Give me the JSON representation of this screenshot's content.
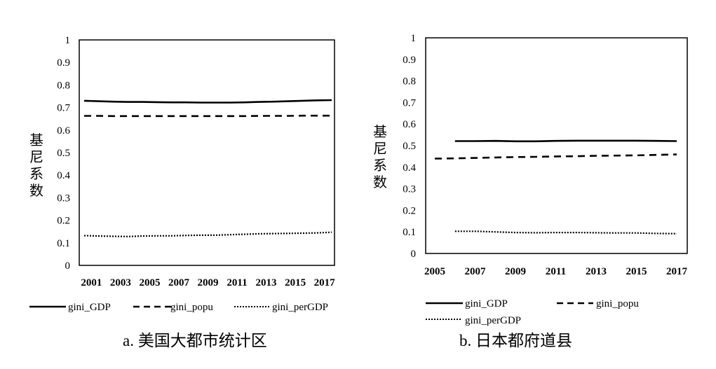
{
  "chart_data": [
    {
      "type": "line",
      "caption": "a. 美国大都市统计区",
      "ylabel": "基尼系数",
      "xlabel": "",
      "ylim": [
        0,
        1
      ],
      "yticks": [
        "0",
        "0.1",
        "0.2",
        "0.3",
        "0.4",
        "0.5",
        "0.6",
        "0.7",
        "0.8",
        "0.9",
        "1"
      ],
      "xtick_labels": [
        "2001",
        "2003",
        "2005",
        "2007",
        "2009",
        "2011",
        "2013",
        "2015",
        "2017"
      ],
      "x": [
        2001,
        2002,
        2003,
        2004,
        2005,
        2006,
        2007,
        2008,
        2009,
        2010,
        2011,
        2012,
        2013,
        2014,
        2015,
        2016,
        2017,
        2018
      ],
      "series": [
        {
          "name": "gini_GDP",
          "style": "solid",
          "values": [
            0.73,
            0.728,
            0.726,
            0.725,
            0.725,
            0.724,
            0.723,
            0.723,
            0.722,
            0.722,
            0.722,
            0.723,
            0.725,
            0.726,
            0.728,
            0.73,
            0.732,
            0.733
          ]
        },
        {
          "name": "gini_popu",
          "style": "dashed",
          "values": [
            0.663,
            0.663,
            0.662,
            0.662,
            0.662,
            0.662,
            0.662,
            0.662,
            0.662,
            0.662,
            0.662,
            0.662,
            0.663,
            0.663,
            0.663,
            0.664,
            0.664,
            0.664
          ]
        },
        {
          "name": "gini_perGDP",
          "style": "dotted",
          "values": [
            0.132,
            0.13,
            0.129,
            0.128,
            0.13,
            0.131,
            0.131,
            0.133,
            0.134,
            0.134,
            0.136,
            0.138,
            0.14,
            0.141,
            0.142,
            0.143,
            0.144,
            0.147
          ]
        }
      ],
      "legend": [
        "gini_GDP",
        "gini_popu",
        "gini_perGDP"
      ]
    },
    {
      "type": "line",
      "caption": "b. 日本都府道县",
      "ylabel": "基尼系数",
      "xlabel": "",
      "ylim": [
        0,
        1
      ],
      "yticks": [
        "0",
        "0.1",
        "0.2",
        "0.3",
        "0.4",
        "0.5",
        "0.6",
        "0.7",
        "0.8",
        "0.9",
        "1"
      ],
      "xtick_labels": [
        "2005",
        "2007",
        "2009",
        "2011",
        "2013",
        "2015",
        "2017"
      ],
      "xlim": [
        2005,
        2017
      ],
      "x": [
        2005,
        2006,
        2007,
        2008,
        2009,
        2010,
        2011,
        2012,
        2013,
        2014,
        2015,
        2016,
        2017
      ],
      "series": [
        {
          "name": "gini_GDP",
          "style": "solid",
          "values": [
            null,
            0.521,
            0.521,
            0.522,
            0.52,
            0.52,
            0.522,
            0.523,
            0.523,
            0.523,
            0.523,
            0.522,
            0.521
          ]
        },
        {
          "name": "gini_popu",
          "style": "dashed",
          "values": [
            0.44,
            0.441,
            0.443,
            0.445,
            0.447,
            0.448,
            0.45,
            0.451,
            0.453,
            0.454,
            0.455,
            0.457,
            0.459
          ]
        },
        {
          "name": "gini_perGDP",
          "style": "dotted",
          "values": [
            null,
            0.103,
            0.103,
            0.1,
            0.097,
            0.096,
            0.097,
            0.097,
            0.096,
            0.095,
            0.095,
            0.093,
            0.092
          ]
        }
      ],
      "legend": [
        "gini_GDP",
        "gini_popu",
        "gini_perGDP"
      ]
    }
  ]
}
